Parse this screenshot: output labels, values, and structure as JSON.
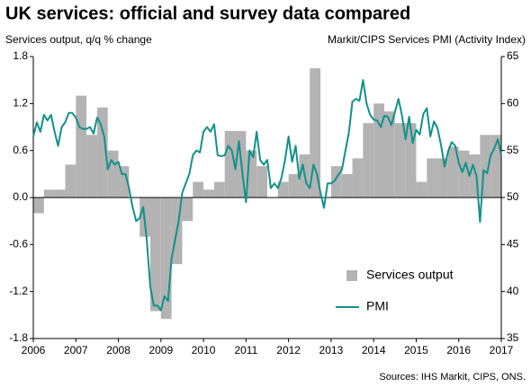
{
  "chart_data": {
    "type": "combo",
    "title": "UK services: official and survey data compared",
    "y_label": "Services output, q/q % change",
    "y2_label": "Markit/CIPS Services PMI (Activity Index)",
    "source": "Sources: IHS Markit, CIPS, ONS.",
    "xlim": [
      2006,
      2017
    ],
    "xticks": [
      2006,
      2007,
      2008,
      2009,
      2010,
      2011,
      2012,
      2013,
      2014,
      2015,
      2016,
      2017
    ],
    "ylim": [
      -1.8,
      1.8
    ],
    "yticks": [
      1.8,
      1.2,
      0.6,
      {
        "value": 0,
        "label": "0.0"
      },
      -0.6,
      -1.2,
      -1.8
    ],
    "y2lim": [
      35,
      65
    ],
    "y2ticks": [
      65,
      60,
      55,
      50,
      45,
      40,
      35
    ],
    "legend": "lower right",
    "series": [
      {
        "name": "Services output",
        "type": "bar",
        "color": "#b3b3b3",
        "x": [
          2006.125,
          2006.375,
          2006.625,
          2006.875,
          2007.125,
          2007.375,
          2007.625,
          2007.875,
          2008.125,
          2008.375,
          2008.625,
          2008.875,
          2009.125,
          2009.375,
          2009.625,
          2009.875,
          2010.125,
          2010.375,
          2010.625,
          2010.875,
          2011.125,
          2011.375,
          2011.625,
          2011.875,
          2012.125,
          2012.375,
          2012.625,
          2012.875,
          2013.125,
          2013.375,
          2013.625,
          2013.875,
          2014.125,
          2014.375,
          2014.625,
          2014.875,
          2015.125,
          2015.375,
          2015.625,
          2015.875,
          2016.125,
          2016.375,
          2016.625,
          2016.875
        ],
        "values": [
          -0.2,
          0.1,
          0.1,
          0.42,
          1.3,
          0.8,
          1.15,
          0.6,
          0.4,
          0,
          -0.5,
          -1.45,
          -1.55,
          -0.85,
          -0.3,
          0.2,
          0.1,
          0.2,
          0.85,
          0.85,
          0.6,
          0.4,
          0,
          0.2,
          0.3,
          0.55,
          1.65,
          0,
          0.4,
          0.3,
          0.5,
          0.95,
          1.2,
          1.1,
          0.95,
          0.95,
          0.2,
          0.5,
          0.5,
          0.65,
          0.6,
          0.55,
          0.8,
          0.8
        ]
      },
      {
        "name": "PMI",
        "type": "line",
        "axis": "y2",
        "color": "#12918b",
        "x": [
          2006,
          2006.083,
          2006.167,
          2006.25,
          2006.333,
          2006.417,
          2006.5,
          2006.583,
          2006.667,
          2006.75,
          2006.833,
          2006.917,
          2007,
          2007.083,
          2007.167,
          2007.25,
          2007.333,
          2007.417,
          2007.5,
          2007.583,
          2007.667,
          2007.75,
          2007.833,
          2007.917,
          2008,
          2008.083,
          2008.167,
          2008.25,
          2008.333,
          2008.417,
          2008.5,
          2008.583,
          2008.667,
          2008.75,
          2008.833,
          2008.917,
          2009,
          2009.083,
          2009.167,
          2009.25,
          2009.333,
          2009.417,
          2009.5,
          2009.583,
          2009.667,
          2009.75,
          2009.833,
          2009.917,
          2010,
          2010.083,
          2010.167,
          2010.25,
          2010.333,
          2010.417,
          2010.5,
          2010.583,
          2010.667,
          2010.75,
          2010.833,
          2010.917,
          2011,
          2011.083,
          2011.167,
          2011.25,
          2011.333,
          2011.417,
          2011.5,
          2011.583,
          2011.667,
          2011.75,
          2011.833,
          2011.917,
          2012,
          2012.083,
          2012.167,
          2012.25,
          2012.333,
          2012.417,
          2012.5,
          2012.583,
          2012.667,
          2012.75,
          2012.833,
          2012.917,
          2013,
          2013.083,
          2013.167,
          2013.25,
          2013.333,
          2013.417,
          2013.5,
          2013.583,
          2013.667,
          2013.75,
          2013.833,
          2013.917,
          2014,
          2014.083,
          2014.167,
          2014.25,
          2014.333,
          2014.417,
          2014.5,
          2014.583,
          2014.667,
          2014.75,
          2014.833,
          2014.917,
          2015,
          2015.083,
          2015.167,
          2015.25,
          2015.333,
          2015.417,
          2015.5,
          2015.583,
          2015.667,
          2015.75,
          2015.833,
          2015.917,
          2016,
          2016.083,
          2016.167,
          2016.25,
          2016.333,
          2016.417,
          2016.5,
          2016.583,
          2016.667,
          2016.75,
          2016.833,
          2016.917,
          2017
        ],
        "values": [
          56.5,
          58,
          57,
          58.8,
          58.2,
          58.8,
          57,
          55.5,
          57.5,
          58,
          59,
          59,
          58.5,
          57.5,
          57.3,
          57.3,
          57.5,
          56.8,
          58.5,
          57.8,
          56.5,
          53,
          54,
          53.5,
          53.8,
          52.5,
          52.5,
          51,
          49,
          47.5,
          47.8,
          49,
          45.5,
          40.5,
          38.5,
          38.5,
          38,
          39.5,
          39,
          43.5,
          45.5,
          47.5,
          50.5,
          51.5,
          52.5,
          54.5,
          55,
          54.8,
          57,
          57.5,
          57,
          57.8,
          54.5,
          54.4,
          54.5,
          55.5,
          55,
          53,
          56,
          52.5,
          49.5,
          55,
          54.3,
          57,
          54,
          53.5,
          54,
          51,
          51.5,
          51,
          52.1,
          54,
          56.5,
          53.8,
          55.5,
          52,
          53.5,
          51.5,
          51,
          53.5,
          52.5,
          50.5,
          48.9,
          51.5,
          51.5,
          51.8,
          52.4,
          52.9,
          54.9,
          56.9,
          60.2,
          60.5,
          60.3,
          62.5,
          60,
          58.8,
          58.3,
          58.2,
          57.5,
          58.7,
          58.6,
          57.7,
          59.1,
          60.5,
          58.7,
          56.2,
          58.6,
          55.8,
          57.2,
          56.7,
          58.9,
          59.5,
          56.5,
          58.1,
          57.4,
          55.6,
          53.3,
          54.9,
          55.9,
          55.5,
          53.7,
          52.7,
          53.7,
          52.3,
          53.5,
          52.3,
          47.4,
          52.9,
          52.6,
          54.5,
          55.2,
          56.2,
          54.5
        ]
      }
    ]
  }
}
